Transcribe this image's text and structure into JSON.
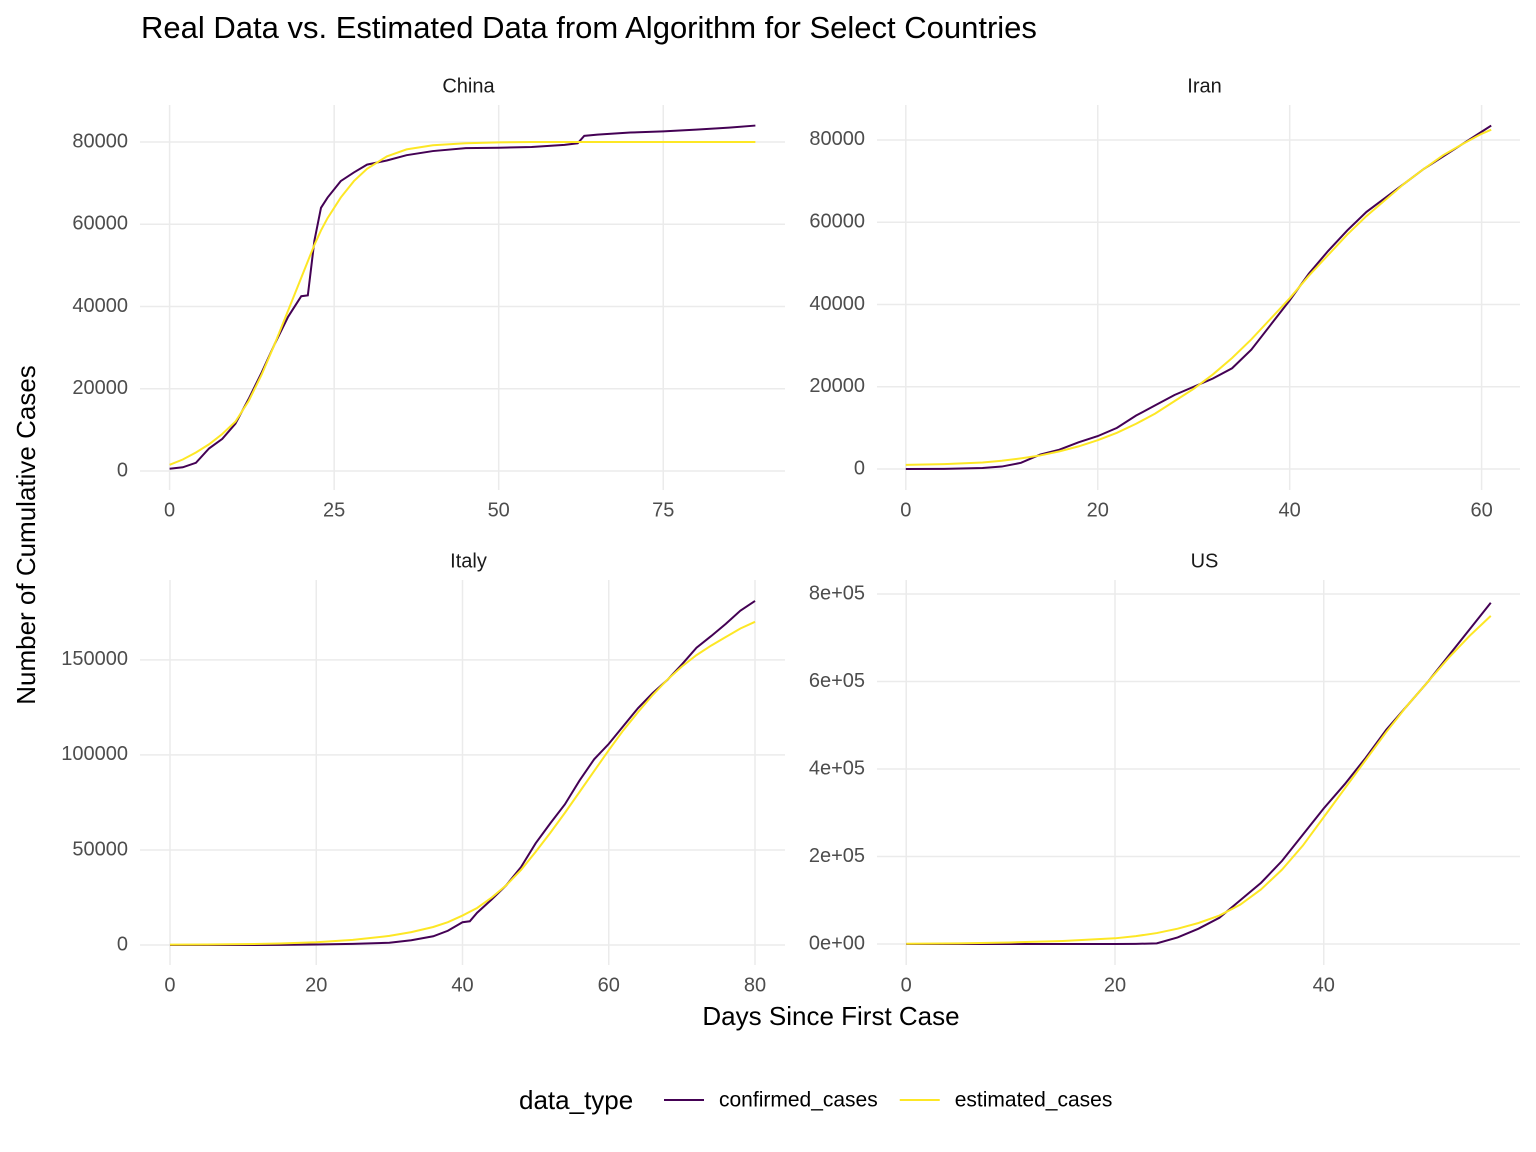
{
  "title": "Real Data vs. Estimated Data from Algorithm for Select Countries",
  "xlabel": "Days Since First Case",
  "ylabel": "Number of Cumulative Cases",
  "legend_title": "data_type",
  "chart_data": [
    {
      "type": "line",
      "title": "China",
      "grid": true,
      "x": [
        0,
        2,
        4,
        6,
        8,
        10,
        12,
        14,
        16,
        18,
        20,
        21,
        22,
        23,
        24,
        26,
        28,
        30,
        33,
        36,
        40,
        45,
        50,
        55,
        60,
        62,
        63,
        65,
        70,
        75,
        80,
        85,
        89
      ],
      "series": [
        {
          "name": "confirmed_cases",
          "color": "#440154",
          "values": [
            550,
            900,
            2000,
            5500,
            7800,
            11500,
            17500,
            24000,
            31000,
            37500,
            42500,
            42700,
            56000,
            64000,
            66500,
            70500,
            72600,
            74500,
            75500,
            76800,
            77800,
            78500,
            78600,
            78800,
            79300,
            79700,
            81500,
            81800,
            82300,
            82600,
            83000,
            83500,
            84000
          ]
        },
        {
          "name": "estimated_cases",
          "color": "#fde725",
          "values": [
            1500,
            2800,
            4500,
            6500,
            9000,
            12000,
            17000,
            23500,
            31000,
            39000,
            47000,
            51000,
            55000,
            58500,
            61500,
            66500,
            70500,
            73500,
            76500,
            78200,
            79200,
            79700,
            79900,
            80000,
            80000,
            80000,
            80000,
            80000,
            80000,
            80000,
            80000,
            80000,
            80000
          ]
        }
      ],
      "xlim": [
        -4.5,
        93.5
      ],
      "ylim": [
        -4620,
        89000
      ],
      "xticks": [
        0,
        25,
        50,
        75
      ],
      "yticks": [
        0,
        20000,
        40000,
        60000,
        80000
      ]
    },
    {
      "type": "line",
      "title": "Iran",
      "grid": true,
      "x": [
        0,
        4,
        8,
        10,
        12,
        14,
        16,
        18,
        20,
        22,
        24,
        26,
        28,
        30,
        32,
        34,
        36,
        38,
        40,
        42,
        44,
        46,
        48,
        50,
        52,
        54,
        56,
        58,
        60,
        61
      ],
      "series": [
        {
          "name": "confirmed_cases",
          "color": "#440154",
          "values": [
            2,
            28,
            250,
            600,
            1500,
            3500,
            4700,
            6500,
            8000,
            10000,
            13000,
            15500,
            18000,
            20000,
            22000,
            24500,
            29000,
            35000,
            41000,
            47500,
            53000,
            58000,
            62500,
            66000,
            69500,
            73000,
            76000,
            79000,
            82000,
            83500
          ]
        },
        {
          "name": "estimated_cases",
          "color": "#fde725",
          "values": [
            1000,
            1200,
            1600,
            2000,
            2600,
            3300,
            4300,
            5500,
            7000,
            8800,
            11000,
            13500,
            16500,
            19500,
            23000,
            27000,
            31500,
            36500,
            41500,
            47000,
            52000,
            57000,
            61500,
            65500,
            69500,
            73000,
            76300,
            79000,
            81500,
            82500
          ]
        }
      ],
      "xlim": [
        -3,
        64
      ],
      "ylim": [
        -5100,
        88500
      ],
      "xticks": [
        0,
        20,
        40,
        60
      ],
      "yticks": [
        0,
        20000,
        40000,
        60000,
        80000
      ]
    },
    {
      "type": "line",
      "title": "Italy",
      "grid": true,
      "x": [
        0,
        5,
        10,
        15,
        20,
        25,
        30,
        33,
        36,
        38,
        40,
        41,
        42,
        44,
        46,
        48,
        50,
        52,
        54,
        56,
        58,
        60,
        62,
        64,
        66,
        68,
        70,
        72,
        74,
        76,
        78,
        80
      ],
      "series": [
        {
          "name": "confirmed_cases",
          "color": "#440154",
          "values": [
            3,
            3,
            3,
            100,
            300,
            600,
            1200,
            2500,
            4600,
            7500,
            12000,
            12500,
            17000,
            24000,
            31500,
            41000,
            53500,
            64000,
            74000,
            86500,
            97700,
            105800,
            115200,
            124600,
            132500,
            139400,
            147600,
            156400,
            162500,
            168900,
            175900,
            181000
          ]
        },
        {
          "name": "estimated_cases",
          "color": "#fde725",
          "values": [
            200,
            300,
            450,
            800,
            1500,
            2700,
            4800,
            6800,
            9500,
            12000,
            15500,
            17500,
            19500,
            25000,
            31500,
            39500,
            49000,
            59000,
            69500,
            80500,
            91500,
            102500,
            113000,
            122500,
            131500,
            139500,
            146500,
            152500,
            157500,
            162000,
            166500,
            170000
          ]
        }
      ],
      "xlim": [
        -4.1,
        84.1
      ],
      "ylim": [
        -10500,
        192000
      ],
      "xticks": [
        0,
        20,
        40,
        60,
        80
      ],
      "yticks": [
        0,
        50000,
        100000,
        150000
      ]
    },
    {
      "type": "line",
      "title": "US",
      "grid": true,
      "x": [
        0,
        5,
        10,
        15,
        20,
        22,
        24,
        26,
        28,
        30,
        32,
        34,
        36,
        38,
        40,
        42,
        44,
        46,
        48,
        50,
        52,
        54,
        56
      ],
      "series": [
        {
          "name": "confirmed_cases",
          "color": "#440154",
          "values": [
            1,
            11,
            12,
            15,
            100,
            300,
            1500,
            15000,
            35000,
            60000,
            100000,
            140000,
            190000,
            250000,
            310000,
            365000,
            425000,
            490000,
            545000,
            600000,
            660000,
            720000,
            780000
          ]
        },
        {
          "name": "estimated_cases",
          "color": "#fde725",
          "values": [
            500,
            1500,
            3500,
            7000,
            13000,
            18000,
            25000,
            35000,
            48000,
            65000,
            90000,
            125000,
            170000,
            225000,
            290000,
            355000,
            420000,
            485000,
            545000,
            600000,
            655000,
            705000,
            750000
          ]
        }
      ],
      "xlim": [
        -2.8,
        58.8
      ],
      "ylim": [
        -48000,
        832000
      ],
      "xticks": [
        0,
        20,
        40
      ],
      "yticks": [
        {
          "value": 0,
          "label": "0e+00"
        },
        {
          "value": 200000,
          "label": "2e+05"
        },
        {
          "value": 400000,
          "label": "4e+05"
        },
        {
          "value": 600000,
          "label": "6e+05"
        },
        {
          "value": 800000,
          "label": "8e+05"
        }
      ]
    }
  ]
}
